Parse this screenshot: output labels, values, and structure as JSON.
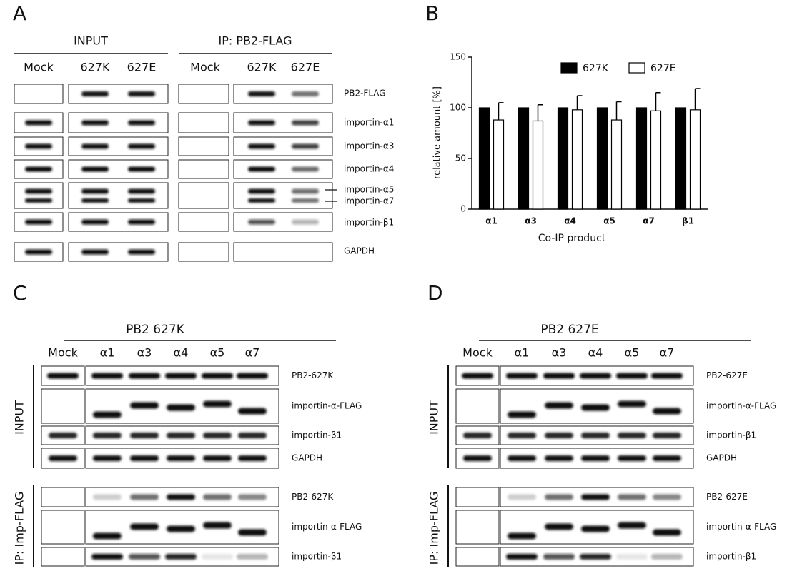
{
  "panel_labels": {
    "a": "A",
    "b": "B",
    "c": "C",
    "d": "D"
  },
  "blot_a": {
    "groups": [
      "INPUT",
      "IP: PB2-FLAG"
    ],
    "lanes": [
      "Mock",
      "627K",
      "627E",
      "Mock",
      "627K",
      "627E"
    ],
    "rows": [
      "PB2-FLAG",
      "importin-α1",
      "importin-α3",
      "importin-α4",
      "importin-α5",
      "importin-α7",
      "importin-β1",
      "GAPDH"
    ]
  },
  "chart_data": {
    "type": "bar",
    "y_label": "relative amount [%]",
    "x_label": "Co-IP product",
    "categories": [
      "α1",
      "α3",
      "α4",
      "α5",
      "α7",
      "β1"
    ],
    "series": [
      {
        "name": "627K",
        "color": "#000000",
        "values": [
          100,
          100,
          100,
          100,
          100,
          100
        ]
      },
      {
        "name": "627E",
        "color": "#ffffff",
        "values": [
          88,
          87,
          98,
          88,
          97,
          98
        ],
        "errors": [
          17,
          16,
          14,
          18,
          18,
          21
        ]
      }
    ],
    "ylim": [
      0,
      150
    ],
    "yticks": [
      0,
      50,
      100,
      150
    ],
    "grid": false
  },
  "blot_c": {
    "title": "PB2 627K",
    "lanes": [
      "Mock",
      "α1",
      "α3",
      "α4",
      "α5",
      "α7"
    ],
    "input_label": "INPUT",
    "ip_label": "IP: Imp-FLAG",
    "input_rows": [
      "PB2-627K",
      "importin-α-FLAG",
      "importin-β1",
      "GAPDH"
    ],
    "ip_rows": [
      "PB2-627K",
      "importin-α-FLAG",
      "importin-β1"
    ]
  },
  "blot_d": {
    "title": "PB2 627E",
    "lanes": [
      "Mock",
      "α1",
      "α3",
      "α4",
      "α5",
      "α7"
    ],
    "input_label": "INPUT",
    "ip_label": "IP: Imp-FLAG",
    "input_rows": [
      "PB2-627E",
      "importin-α-FLAG",
      "importin-β1",
      "GAPDH"
    ],
    "ip_rows": [
      "PB2-627E",
      "importin-α-FLAG",
      "importin-β1"
    ]
  }
}
